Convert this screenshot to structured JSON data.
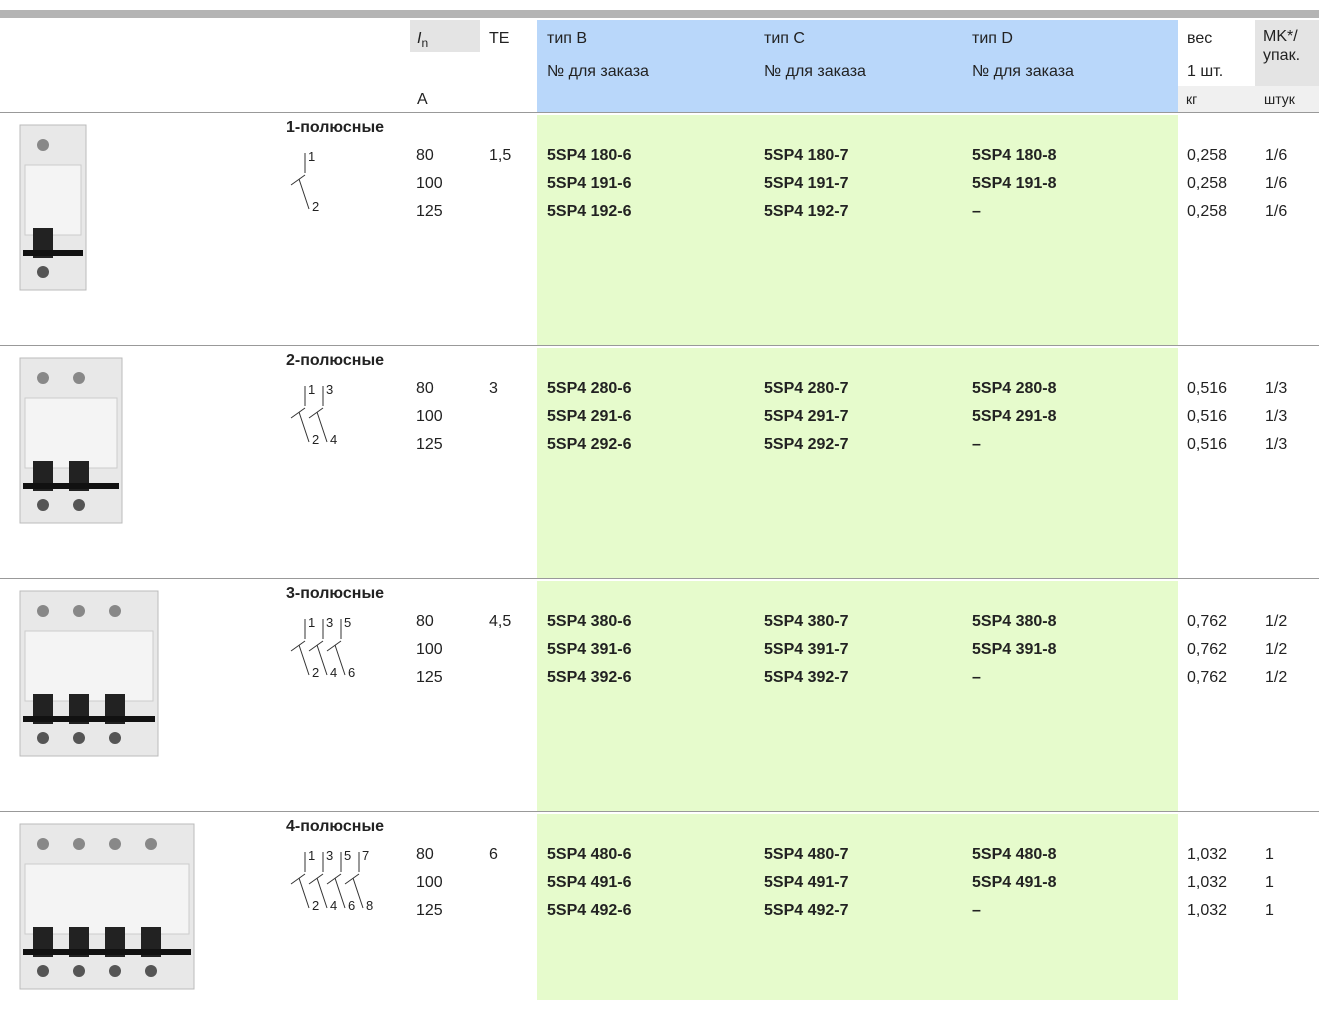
{
  "header": {
    "in_symbol": "I",
    "in_sub": "n",
    "te": "TE",
    "type_b": "тип B",
    "type_c": "тип C",
    "type_d": "тип D",
    "order_b": "№ для заказа",
    "order_c": "№ для заказа",
    "order_d": "№ для заказа",
    "weight": "вес",
    "weight_sub": "1 шт.",
    "pack": "MK*/ упак.",
    "unit_in": "A",
    "unit_weight": "кг",
    "unit_pack": "штук"
  },
  "sections": [
    {
      "title": "1-полюсные",
      "te": "1,5",
      "terminals_top": [
        "1"
      ],
      "terminals_bottom": [
        "2"
      ],
      "rows": [
        {
          "in": "80",
          "b": "5SP4 180-6",
          "c": "5SP4 180-7",
          "d": "5SP4 180-8",
          "weight": "0,258",
          "pack": "1/6"
        },
        {
          "in": "100",
          "b": "5SP4 191-6",
          "c": "5SP4 191-7",
          "d": "5SP4 191-8",
          "weight": "0,258",
          "pack": "1/6"
        },
        {
          "in": "125",
          "b": "5SP4 192-6",
          "c": "5SP4 192-7",
          "d": "–",
          "weight": "0,258",
          "pack": "1/6"
        }
      ]
    },
    {
      "title": "2-полюсные",
      "te": "3",
      "terminals_top": [
        "1",
        "3"
      ],
      "terminals_bottom": [
        "2",
        "4"
      ],
      "rows": [
        {
          "in": "80",
          "b": "5SP4 280-6",
          "c": "5SP4 280-7",
          "d": "5SP4 280-8",
          "weight": "0,516",
          "pack": "1/3"
        },
        {
          "in": "100",
          "b": "5SP4 291-6",
          "c": "5SP4 291-7",
          "d": "5SP4 291-8",
          "weight": "0,516",
          "pack": "1/3"
        },
        {
          "in": "125",
          "b": "5SP4 292-6",
          "c": "5SP4 292-7",
          "d": "–",
          "weight": "0,516",
          "pack": "1/3"
        }
      ]
    },
    {
      "title": "3-полюсные",
      "te": "4,5",
      "terminals_top": [
        "1",
        "3",
        "5"
      ],
      "terminals_bottom": [
        "2",
        "4",
        "6"
      ],
      "rows": [
        {
          "in": "80",
          "b": "5SP4 380-6",
          "c": "5SP4 380-7",
          "d": "5SP4 380-8",
          "weight": "0,762",
          "pack": "1/2"
        },
        {
          "in": "100",
          "b": "5SP4 391-6",
          "c": "5SP4 391-7",
          "d": "5SP4 391-8",
          "weight": "0,762",
          "pack": "1/2"
        },
        {
          "in": "125",
          "b": "5SP4 392-6",
          "c": "5SP4 392-7",
          "d": "–",
          "weight": "0,762",
          "pack": "1/2"
        }
      ]
    },
    {
      "title": "4-полюсные",
      "te": "6",
      "terminals_top": [
        "1",
        "3",
        "5",
        "7"
      ],
      "terminals_bottom": [
        "2",
        "4",
        "6",
        "8"
      ],
      "rows": [
        {
          "in": "80",
          "b": "5SP4 480-6",
          "c": "5SP4 480-7",
          "d": "5SP4 480-8",
          "weight": "1,032",
          "pack": "1"
        },
        {
          "in": "100",
          "b": "5SP4 491-6",
          "c": "5SP4 491-7",
          "d": "5SP4 491-8",
          "weight": "1,032",
          "pack": "1"
        },
        {
          "in": "125",
          "b": "5SP4 492-6",
          "c": "5SP4 492-7",
          "d": "–",
          "weight": "1,032",
          "pack": "1"
        }
      ]
    }
  ]
}
